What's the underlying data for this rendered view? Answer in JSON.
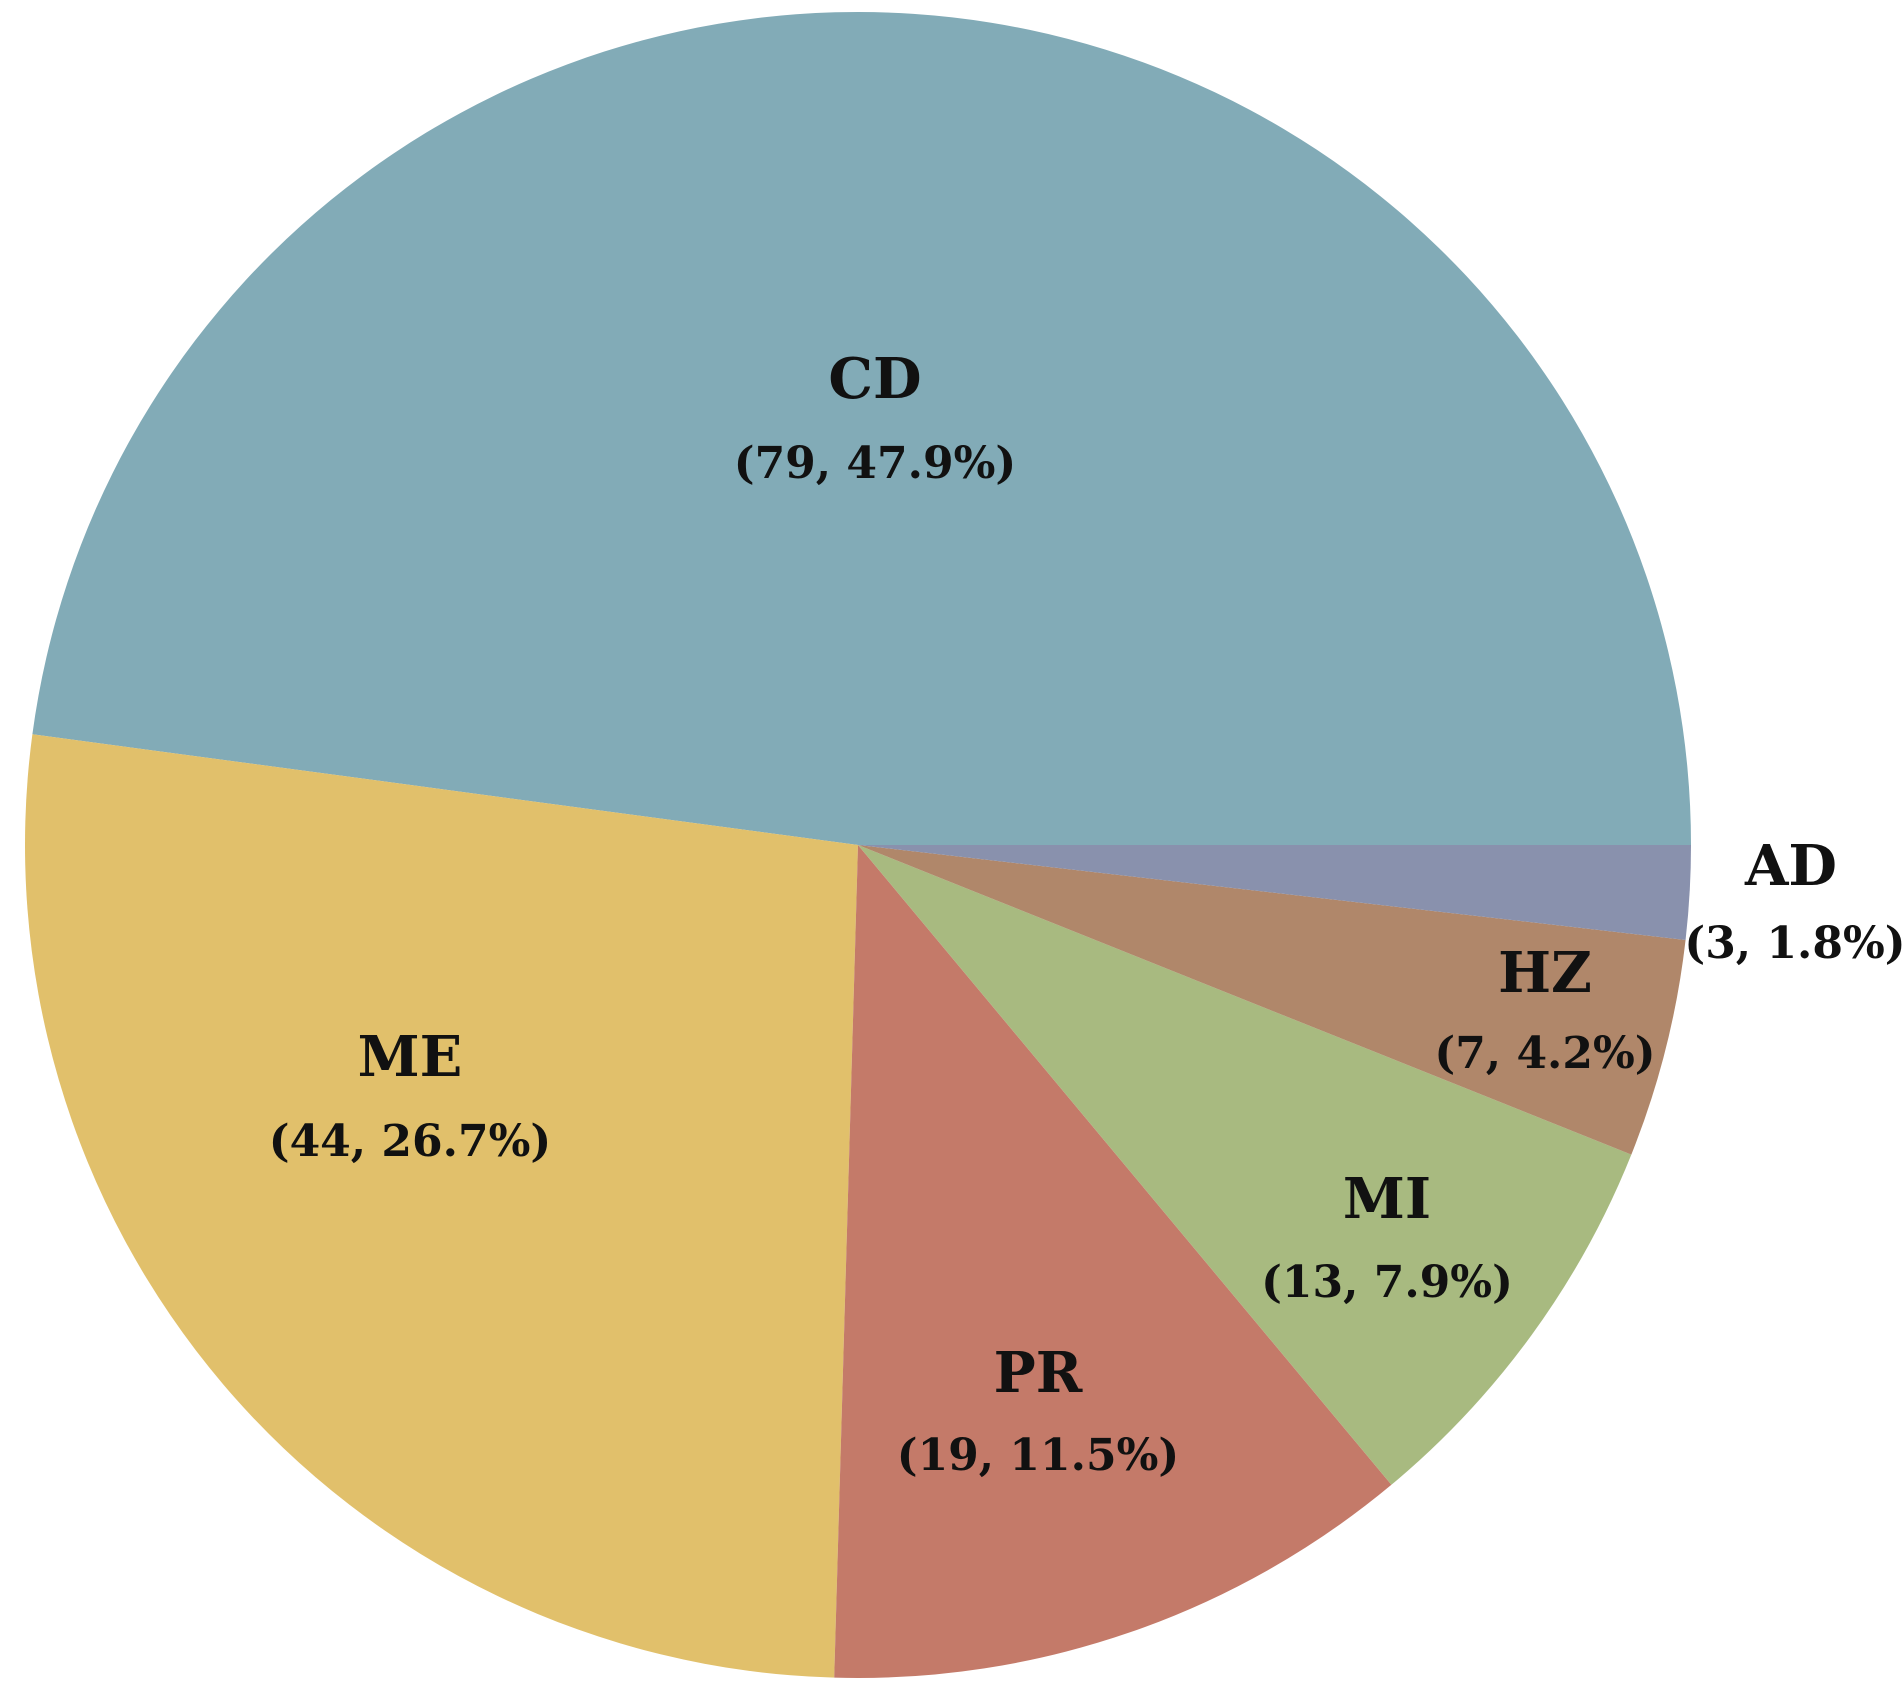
{
  "chart_data": {
    "type": "pie",
    "title": "",
    "slices": [
      {
        "name": "CD",
        "value": 79,
        "value_label": "(79, 47.9%)",
        "color": "#82abb7"
      },
      {
        "name": "ME",
        "value": 44,
        "value_label": "(44, 26.7%)",
        "color": "#e1c06b"
      },
      {
        "name": "PR",
        "value": 19,
        "value_label": "(19, 11.5%)",
        "color": "#c47a69"
      },
      {
        "name": "MI",
        "value": 13,
        "value_label": "(13, 7.9%)",
        "color": "#a8ba80"
      },
      {
        "name": "HZ",
        "value": 7,
        "value_label": "(7, 4.2%)",
        "color": "#b0876a"
      },
      {
        "name": "AD",
        "value": 3,
        "value_label": "(3, 1.8%)",
        "color": "#8991ad"
      }
    ],
    "start_angle_deg": 0,
    "direction": "counterclockwise",
    "legend": "none",
    "data_labels": "category name with count and percent"
  }
}
